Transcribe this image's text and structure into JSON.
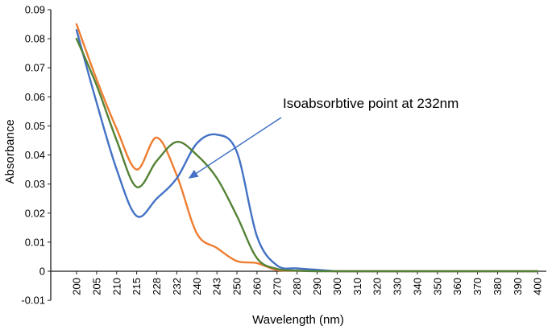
{
  "chart_data": {
    "type": "line",
    "title": "",
    "xlabel": "Wavelength (nm)",
    "ylabel": "Absorbance",
    "grid": false,
    "legend": "none",
    "x_axis": {
      "categories": [
        "200",
        "205",
        "210",
        "215",
        "228",
        "232",
        "240",
        "243",
        "250",
        "260",
        "270",
        "280",
        "290",
        "300",
        "310",
        "320",
        "330",
        "340",
        "350",
        "360",
        "370",
        "380",
        "390",
        "400"
      ]
    },
    "y_axis": {
      "min": -0.01,
      "max": 0.09,
      "ticks": [
        "0.09",
        "0.08",
        "0.07",
        "0.06",
        "0.05",
        "0.04",
        "0.03",
        "0.02",
        "0.01",
        "0",
        "-0.01"
      ]
    },
    "series": [
      {
        "name": "orange",
        "color": "#ED7D31",
        "values": [
          0.085,
          0.066,
          0.049,
          0.035,
          0.046,
          0.033,
          0.013,
          0.008,
          0.0035,
          0.0028,
          0.0004,
          0.0002,
          0.0001,
          0,
          0,
          0,
          0,
          0,
          0,
          0,
          0,
          0,
          0,
          0
        ]
      },
      {
        "name": "blue",
        "color": "#4472C4",
        "values": [
          0.083,
          0.058,
          0.035,
          0.019,
          0.025,
          0.032,
          0.044,
          0.047,
          0.041,
          0.012,
          0.002,
          0.001,
          0.0005,
          0,
          0,
          0,
          0,
          0,
          0,
          0,
          0,
          0,
          0,
          0
        ]
      },
      {
        "name": "green",
        "color": "#548235",
        "values": [
          0.08,
          0.064,
          0.045,
          0.029,
          0.038,
          0.0445,
          0.04,
          0.032,
          0.019,
          0.0045,
          0.0008,
          0.0002,
          0,
          0,
          0,
          0,
          0,
          0,
          0,
          0,
          0,
          0,
          0,
          0
        ]
      }
    ],
    "annotation": {
      "text": "Isoabsorbtive point at 232nm",
      "color": "#4472C4"
    }
  }
}
